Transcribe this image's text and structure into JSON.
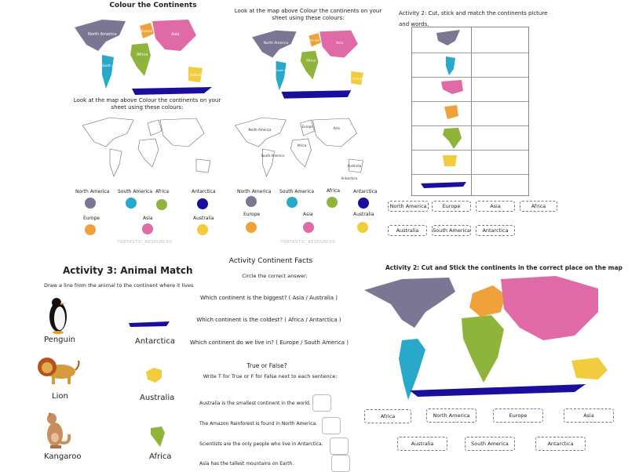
{
  "quad1": {
    "title": "Colour the Continents",
    "instruction_left": "Look at the map above Colour the continents on your sheet using these colours:",
    "instruction_right": "Look at the map above Colour the continents on your sheet using these colours:",
    "map_labels_left": {
      "na": "North America",
      "sa": "South America",
      "eu": "Europe",
      "af": "Africa",
      "as": "Asia",
      "au": "Australia"
    },
    "map_labels_right": {
      "na": "North America",
      "sa": "South America",
      "eu": "Europe",
      "af": "Africa",
      "as": "Asia",
      "au": "Australia"
    },
    "blank_labels": {
      "na": "North America",
      "eu": "Europe",
      "as": "Asia",
      "af": "Africa",
      "sa": "South America",
      "au": "Australia",
      "an": "Antarctica"
    },
    "legend": [
      "North America",
      "South America",
      "Africa",
      "Antarctica",
      "Europe",
      "Asia",
      "Australia"
    ],
    "watermark": "FANTASTIC_RESOURCES"
  },
  "quad1_colors": {
    "na": "#7b7694",
    "sa": "#29a9c9",
    "af": "#8fb43c",
    "an": "#1a0f9c",
    "eu": "#f0a23a",
    "as": "#e06aa6",
    "au": "#f2cc3f"
  },
  "quad2": {
    "title": "Activity 2: Cut, stick and match the continents picture and words.",
    "labels_row1": [
      "North America",
      "Europe",
      "Asia",
      "Africa"
    ],
    "labels_row2": [
      "Australia",
      "South America",
      "Antarctica"
    ]
  },
  "quad3": {
    "title": "Activity 3: Animal Match",
    "instruction": "Draw a line from the animal to the continent where it lives",
    "animals": [
      "Penguin",
      "Lion",
      "Kangaroo"
    ],
    "continents": [
      "Antarctica",
      "Australia",
      "Africa"
    ]
  },
  "facts": {
    "title": "Activity Continent Facts",
    "circle": "Circle the correct answer:",
    "questions": [
      "Which continent is the biggest? ( Asia / Australia )",
      "Which continent is the coldest? ( Africa / Antarctica )",
      "Which continent do we live in? ( Europe / South America )"
    ],
    "tf_title": "True or False?",
    "tf_instruction": "Write T for True or F for False next to each sentence:",
    "statements": [
      "Australia is the smallest continent in the world.",
      "The Amazon Rainforest is found in North America.",
      "Scientists are the only people who live in Antarctica.",
      "Asia has the tallest mountains on Earth."
    ]
  },
  "quad4": {
    "title": "Activity 2: Cut and Stick the continents in the correct place on the map",
    "labels_row1": [
      "Africa",
      "North America",
      "Europe",
      "Asia"
    ],
    "labels_row2": [
      "Australia",
      "South America",
      "Antarctica"
    ]
  }
}
